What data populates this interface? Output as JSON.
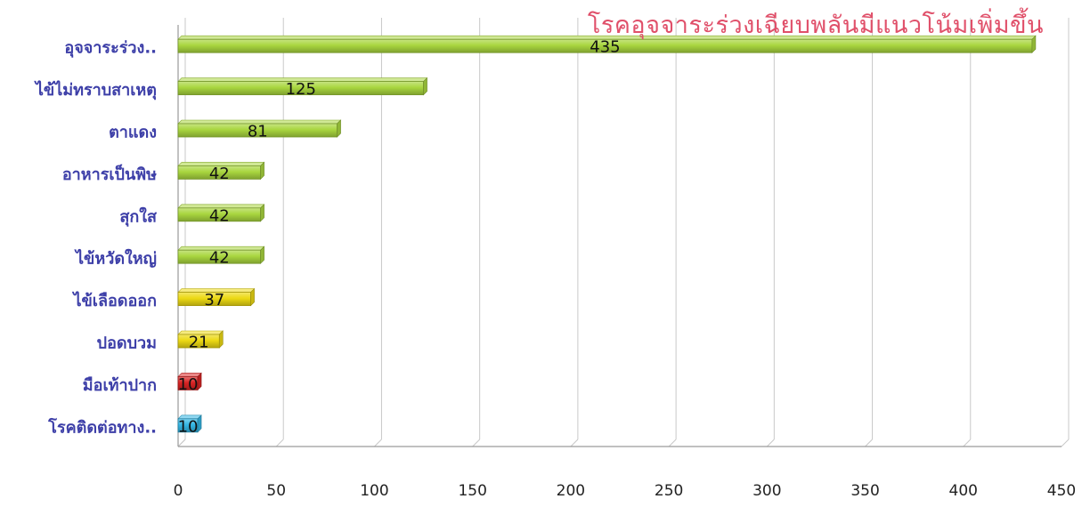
{
  "chart_data": {
    "type": "bar",
    "orientation": "horizontal",
    "annotation": "โรคอุจจาระร่วงเฉียบพลันมีแนวโน้มเพิ่มขึ้น",
    "categories": [
      "อุจจาระร่วง..",
      "ไข้ไม่ทราบสาเหตุ",
      "ตาแดง",
      "อาหารเป็นพิษ",
      "สุกใส",
      "ไข้หวัดใหญ่",
      "ไข้เลือดออก",
      "ปอดบวม",
      "มือเท้าปาก",
      "โรคติดต่อทาง.."
    ],
    "values": [
      435,
      125,
      81,
      42,
      42,
      42,
      37,
      21,
      10,
      10
    ],
    "bar_colors": [
      "#a9d63f",
      "#a9d63f",
      "#a9d63f",
      "#a9d63f",
      "#a9d63f",
      "#a9d63f",
      "#ecd914",
      "#ecd914",
      "#d92424",
      "#34b6e4"
    ],
    "xlim": [
      0,
      450
    ],
    "xticks": [
      0,
      50,
      100,
      150,
      200,
      250,
      300,
      350,
      400,
      450
    ],
    "grid": true,
    "legend": "none",
    "colors": {
      "annotation": "#e0506a",
      "category_label": "#3d3fa8",
      "tick_label": "#222222",
      "grid": "#c8c8c8"
    }
  }
}
